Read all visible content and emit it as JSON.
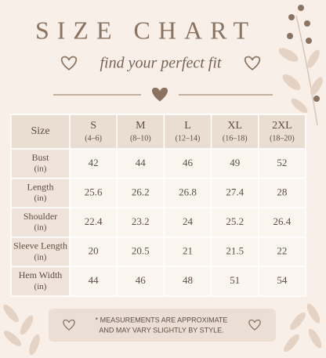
{
  "title": "SIZE CHART",
  "subtitle": "find your perfect fit",
  "table": {
    "corner": "Size",
    "columns": [
      {
        "size": "S",
        "range": "(4–6)"
      },
      {
        "size": "M",
        "range": "(8–10)"
      },
      {
        "size": "L",
        "range": "(12–14)"
      },
      {
        "size": "XL",
        "range": "(16–18)"
      },
      {
        "size": "2XL",
        "range": "(18–20)"
      }
    ],
    "rows": [
      {
        "measure": "Bust",
        "unit": "(in)",
        "values": [
          42,
          44,
          46,
          49,
          52
        ]
      },
      {
        "measure": "Length",
        "unit": "(in)",
        "values": [
          25.6,
          26.2,
          26.8,
          27.4,
          28
        ]
      },
      {
        "measure": "Shoulder",
        "unit": "(in)",
        "values": [
          22.4,
          23.2,
          24,
          25.2,
          26.4
        ]
      },
      {
        "measure": "Sleeve Length",
        "unit": "(in)",
        "values": [
          20,
          20.5,
          21,
          21.5,
          22
        ]
      },
      {
        "measure": "Hem Width",
        "unit": "(in)",
        "values": [
          44,
          46,
          48,
          51,
          54
        ]
      }
    ]
  },
  "note": [
    "* MEASUREMENTS ARE APPROXIMATE",
    "AND MAY VARY SLIGHTLY BY STYLE."
  ]
}
